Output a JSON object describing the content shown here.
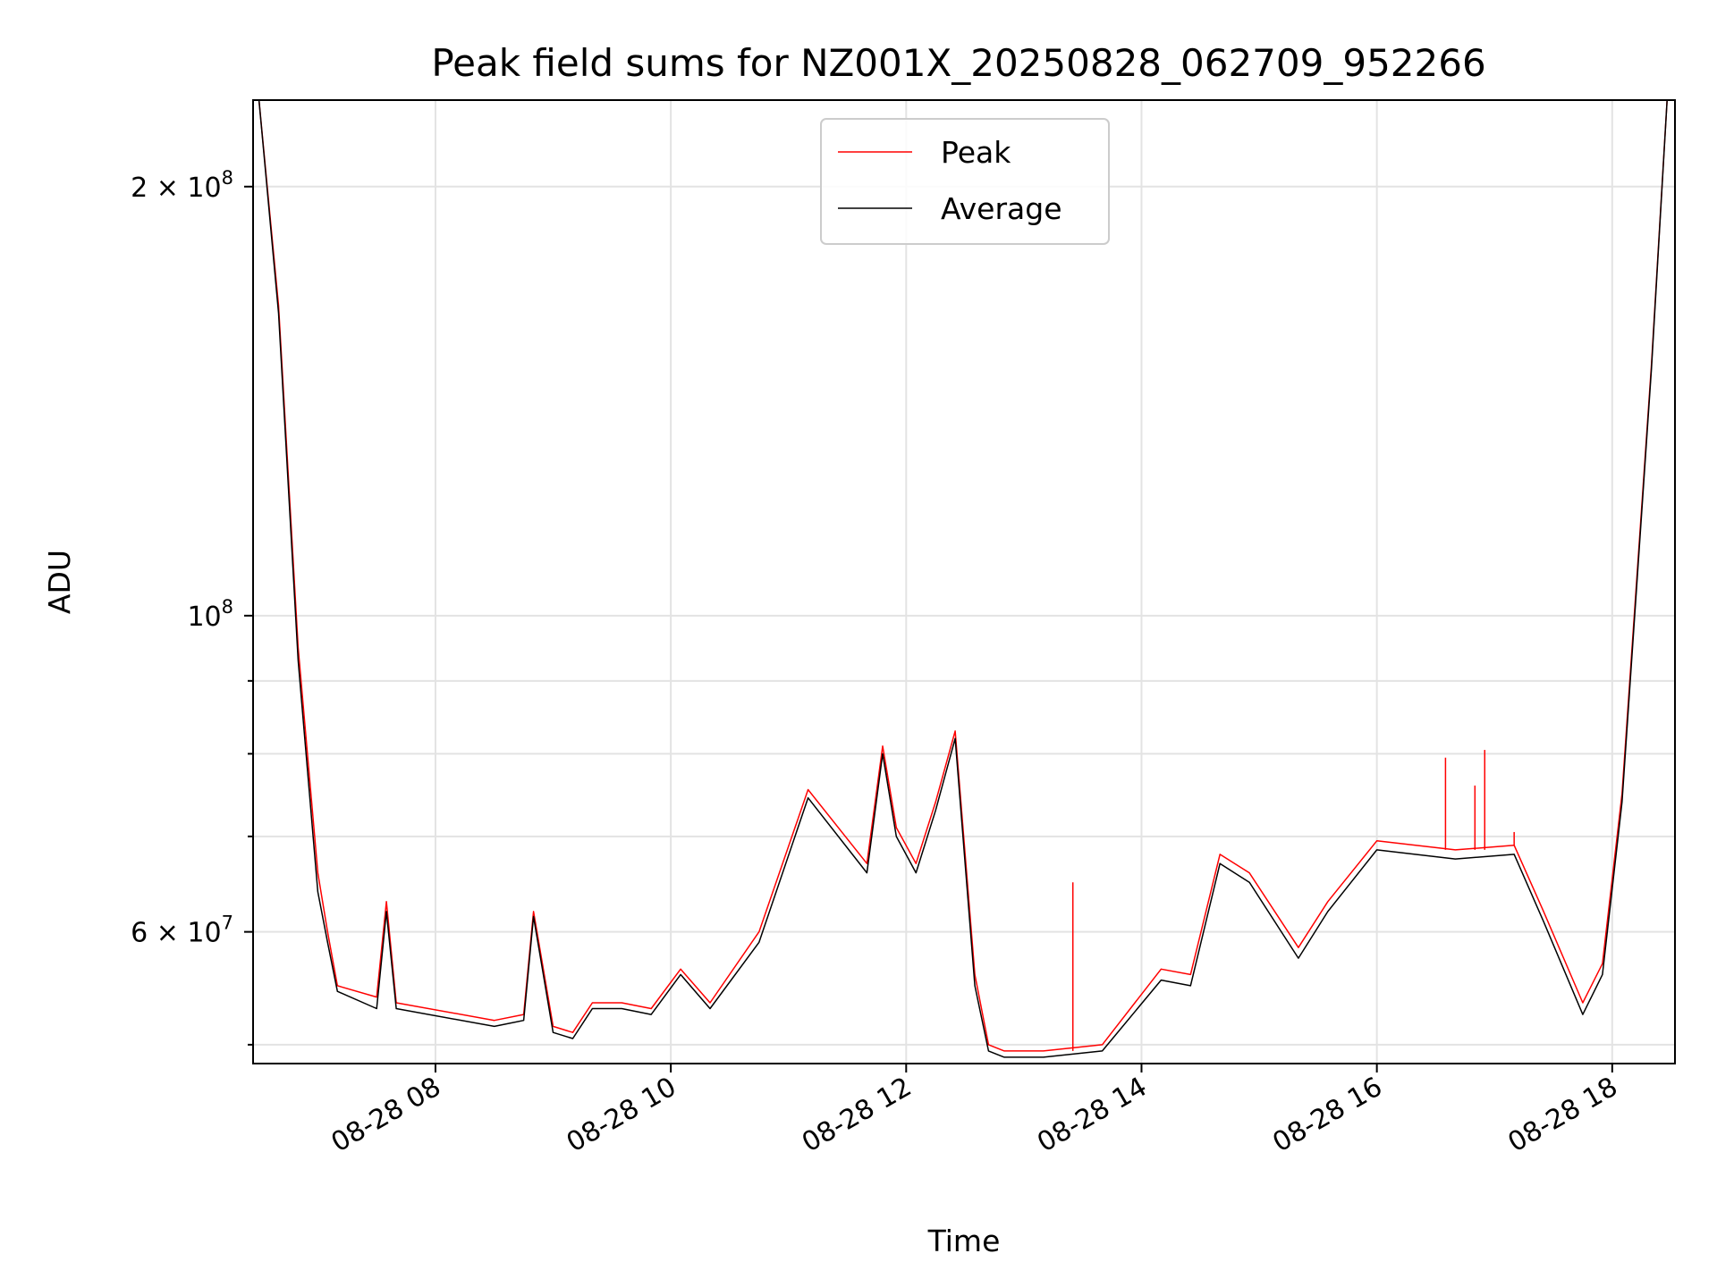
{
  "chart_data": {
    "type": "line",
    "title": "Peak field sums for NZ001X_20250828_062709_952266",
    "xlabel": "Time",
    "ylabel": "ADU",
    "y_scale": "log",
    "grid": true,
    "legend_placement": "upper-center",
    "xlim": [
      "2025-08-28 06:27",
      "2025-08-28 18:32"
    ],
    "ylim": [
      48500000,
      230000000
    ],
    "x_ticks": [
      {
        "value": "2025-08-28 08:00",
        "label": "08-28 08"
      },
      {
        "value": "2025-08-28 10:00",
        "label": "08-28 10"
      },
      {
        "value": "2025-08-28 12:00",
        "label": "08-28 12"
      },
      {
        "value": "2025-08-28 14:00",
        "label": "08-28 14"
      },
      {
        "value": "2025-08-28 16:00",
        "label": "08-28 16"
      },
      {
        "value": "2025-08-28 18:00",
        "label": "08-28 18"
      }
    ],
    "y_major_ticks": [
      {
        "value": 60000000,
        "base": "6 × 10",
        "exp": "7"
      },
      {
        "value": 100000000,
        "base": "10",
        "exp": "8"
      },
      {
        "value": 200000000,
        "base": "2 × 10",
        "exp": "8"
      }
    ],
    "y_minor_ticks": [
      50000000,
      70000000,
      80000000,
      90000000,
      300000000
    ],
    "series": [
      {
        "name": "Peak",
        "color": "#ff0000"
      },
      {
        "name": "Average",
        "color": "#000000"
      }
    ],
    "x": [
      "2025-08-28 06:30",
      "2025-08-28 06:40",
      "2025-08-28 06:50",
      "2025-08-28 07:00",
      "2025-08-28 07:05",
      "2025-08-28 07:10",
      "2025-08-28 07:30",
      "2025-08-28 07:35",
      "2025-08-28 07:40",
      "2025-08-28 08:30",
      "2025-08-28 08:45",
      "2025-08-28 08:50",
      "2025-08-28 09:00",
      "2025-08-28 09:10",
      "2025-08-28 09:20",
      "2025-08-28 09:35",
      "2025-08-28 09:50",
      "2025-08-28 10:05",
      "2025-08-28 10:20",
      "2025-08-28 10:45",
      "2025-08-28 11:10",
      "2025-08-28 11:40",
      "2025-08-28 11:48",
      "2025-08-28 11:55",
      "2025-08-28 12:05",
      "2025-08-28 12:15",
      "2025-08-28 12:25",
      "2025-08-28 12:35",
      "2025-08-28 12:42",
      "2025-08-28 12:50",
      "2025-08-28 13:10",
      "2025-08-28 13:40",
      "2025-08-28 14:10",
      "2025-08-28 14:25",
      "2025-08-28 14:40",
      "2025-08-28 14:55",
      "2025-08-28 15:20",
      "2025-08-28 15:35",
      "2025-08-28 16:00",
      "2025-08-28 16:40",
      "2025-08-28 17:10",
      "2025-08-28 17:25",
      "2025-08-28 17:45",
      "2025-08-28 17:55",
      "2025-08-28 18:05",
      "2025-08-28 18:20",
      "2025-08-28 18:28"
    ],
    "peak": [
      230000000,
      165000000,
      95000000,
      66000000,
      60000000,
      55000000,
      54000000,
      63000000,
      53500000,
      52000000,
      52500000,
      62000000,
      51500000,
      51000000,
      53500000,
      53500000,
      53000000,
      56500000,
      53500000,
      60000000,
      75500000,
      67000000,
      81000000,
      71000000,
      67000000,
      74000000,
      83000000,
      56000000,
      50000000,
      49500000,
      49500000,
      50000000,
      56500000,
      56000000,
      68000000,
      66000000,
      58500000,
      63000000,
      69500000,
      68500000,
      69000000,
      62000000,
      53500000,
      57000000,
      75000000,
      150000000,
      230000000
    ],
    "average": [
      230000000,
      163000000,
      93000000,
      64000000,
      59000000,
      54500000,
      53000000,
      62000000,
      53000000,
      51500000,
      52000000,
      61500000,
      51000000,
      50500000,
      53000000,
      53000000,
      52500000,
      56000000,
      53000000,
      59000000,
      74500000,
      66000000,
      80000000,
      70000000,
      66000000,
      73000000,
      82000000,
      55000000,
      49500000,
      49000000,
      49000000,
      49500000,
      55500000,
      55000000,
      67000000,
      65000000,
      57500000,
      62000000,
      68500000,
      67500000,
      68000000,
      61000000,
      52500000,
      56000000,
      74000000,
      149000000,
      230000000
    ],
    "peak_spikes": [
      {
        "x": "2025-08-28 13:25",
        "value": 65000000
      },
      {
        "x": "2025-08-28 16:35",
        "value": 79500000
      },
      {
        "x": "2025-08-28 16:50",
        "value": 76000000
      },
      {
        "x": "2025-08-28 16:55",
        "value": 80500000
      },
      {
        "x": "2025-08-28 17:10",
        "value": 70500000
      }
    ]
  }
}
